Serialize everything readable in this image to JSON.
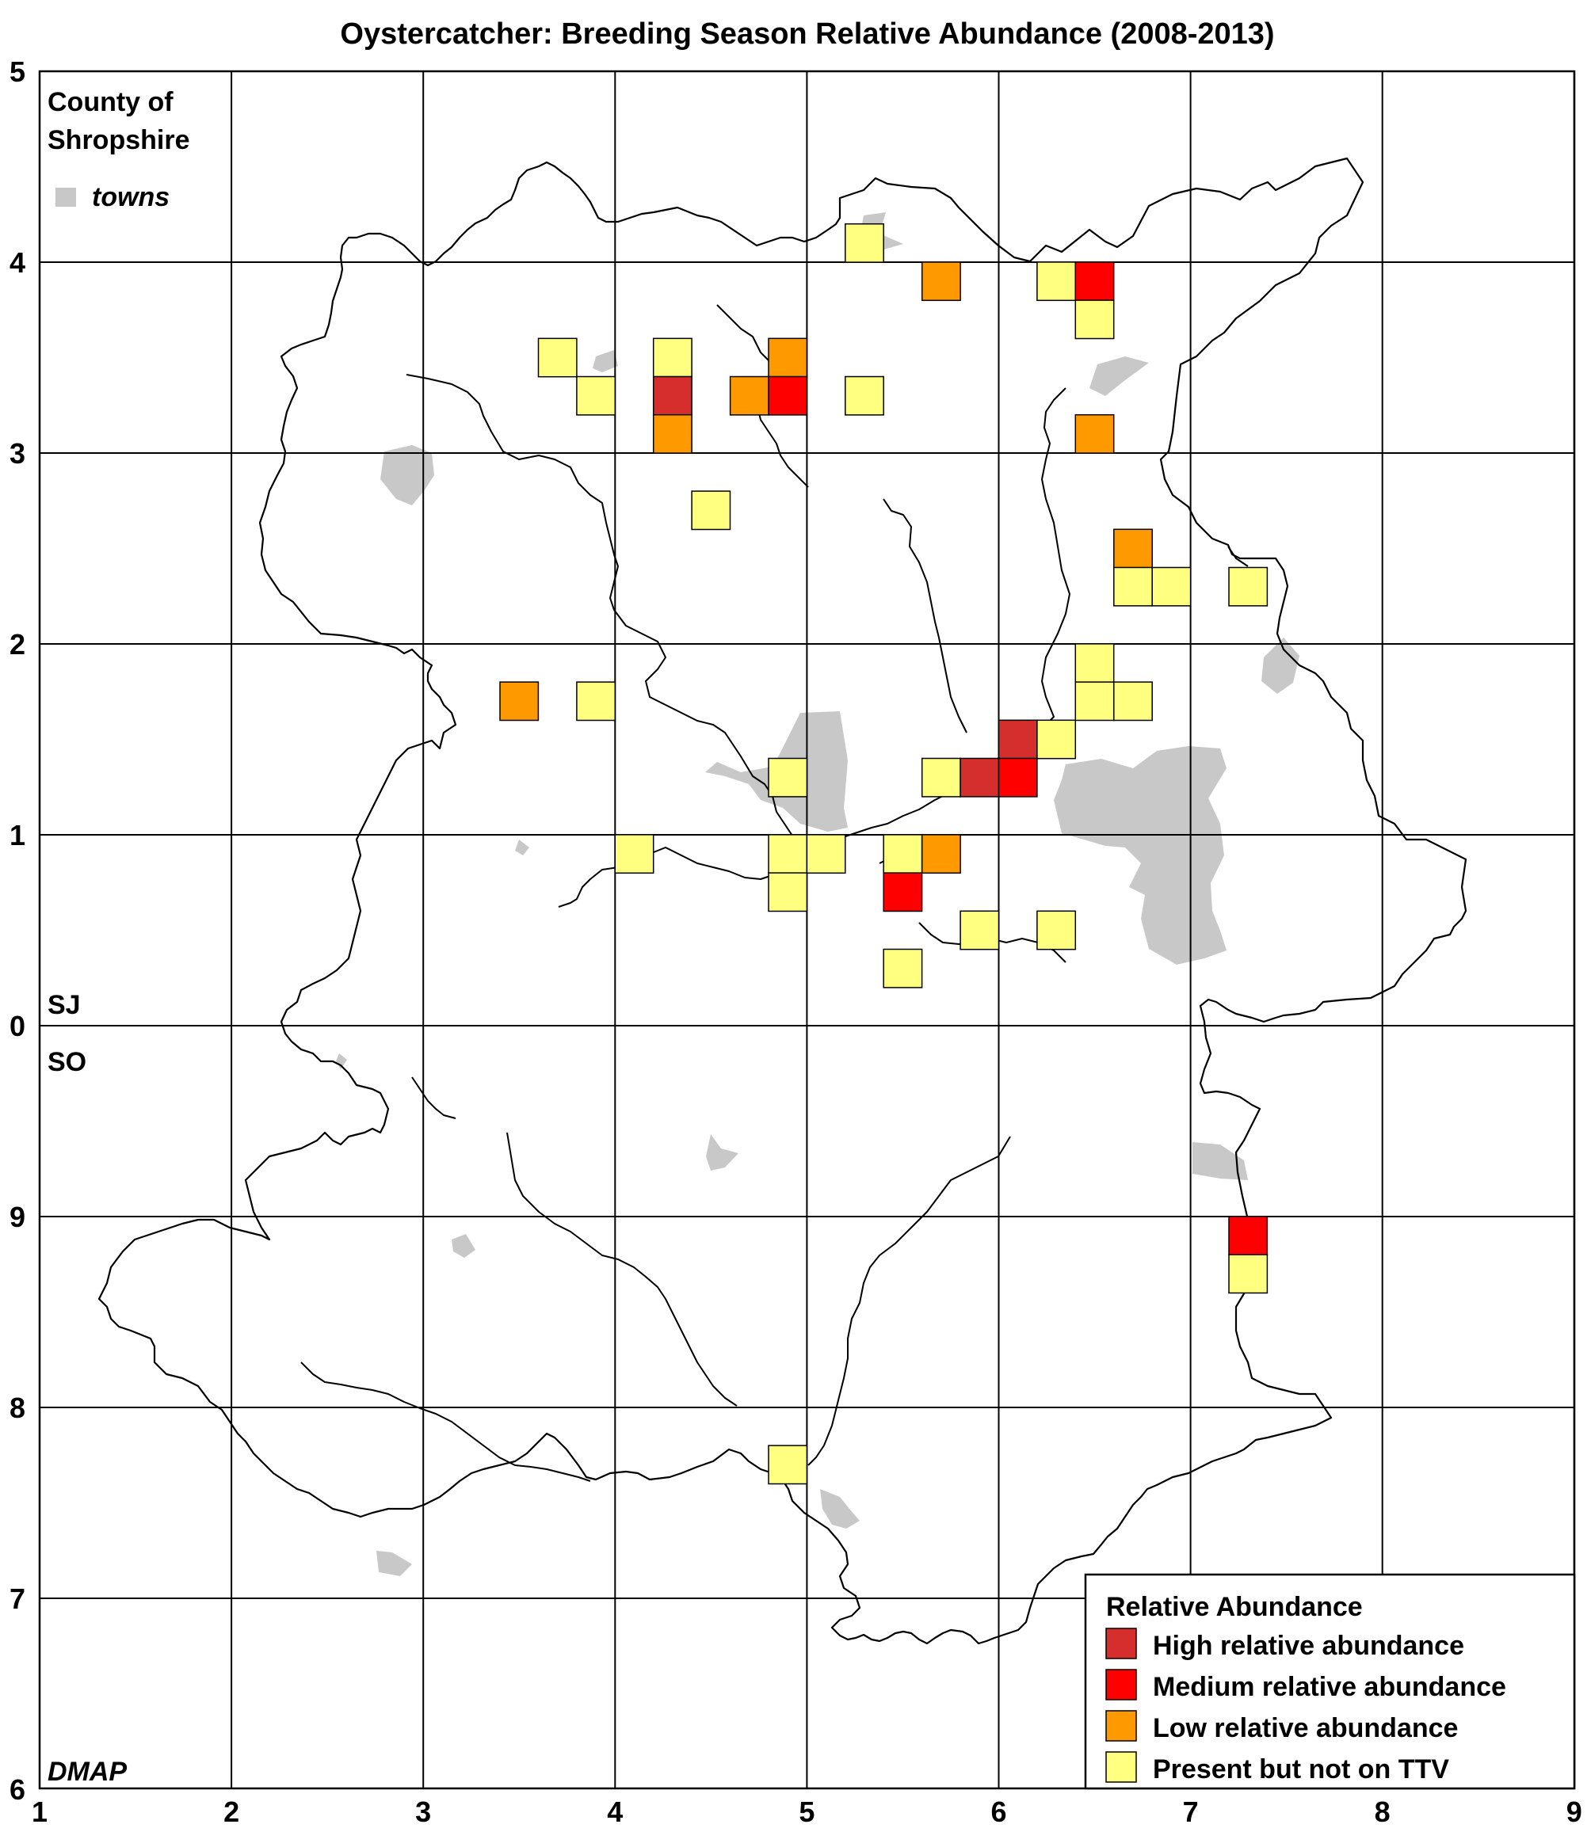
{
  "title": "Oystercatcher: Breeding Season Relative Abundance (2008-2013)",
  "county_label_line1": "County of",
  "county_label_line2": "Shropshire",
  "towns_label": "towns",
  "grid_square_top": "SJ",
  "grid_square_bottom": "SO",
  "credit": "DMAP",
  "x_ticks": [
    "1",
    "2",
    "3",
    "4",
    "5",
    "6",
    "7",
    "8",
    "9"
  ],
  "y_ticks": [
    "5",
    "4",
    "3",
    "2",
    "1",
    "0",
    "9",
    "8",
    "7",
    "6"
  ],
  "legend": {
    "title": "Relative Abundance",
    "items": [
      {
        "label": "High relative abundance",
        "color": "#d62d2d"
      },
      {
        "label": "Medium relative abundance",
        "color": "#ff0000"
      },
      {
        "label": "Low relative abundance",
        "color": "#ff9900"
      },
      {
        "label": "Present but not on TTV",
        "color": "#ffff80"
      }
    ]
  },
  "colors": {
    "town": "#c8c8c8",
    "high": "#d62d2d",
    "medium": "#ff0000",
    "low": "#ff9900",
    "present": "#ffff80"
  },
  "records": [
    {
      "e": 5.3,
      "n": 4.1,
      "level": "present"
    },
    {
      "e": 5.7,
      "n": 3.9,
      "level": "low"
    },
    {
      "e": 6.3,
      "n": 3.9,
      "level": "present"
    },
    {
      "e": 6.5,
      "n": 3.9,
      "level": "medium"
    },
    {
      "e": 6.5,
      "n": 3.7,
      "level": "present"
    },
    {
      "e": 3.7,
      "n": 3.5,
      "level": "present"
    },
    {
      "e": 4.3,
      "n": 3.5,
      "level": "present"
    },
    {
      "e": 4.9,
      "n": 3.5,
      "level": "low"
    },
    {
      "e": 3.9,
      "n": 3.3,
      "level": "present"
    },
    {
      "e": 4.3,
      "n": 3.3,
      "level": "high"
    },
    {
      "e": 4.7,
      "n": 3.3,
      "level": "low"
    },
    {
      "e": 4.9,
      "n": 3.3,
      "level": "medium"
    },
    {
      "e": 5.3,
      "n": 3.3,
      "level": "present"
    },
    {
      "e": 4.3,
      "n": 3.1,
      "level": "low"
    },
    {
      "e": 6.5,
      "n": 3.1,
      "level": "low"
    },
    {
      "e": 4.5,
      "n": 2.7,
      "level": "present"
    },
    {
      "e": 6.7,
      "n": 2.5,
      "level": "low"
    },
    {
      "e": 6.7,
      "n": 2.3,
      "level": "present"
    },
    {
      "e": 6.9,
      "n": 2.3,
      "level": "present"
    },
    {
      "e": 7.3,
      "n": 2.3,
      "level": "present"
    },
    {
      "e": 6.5,
      "n": 1.9,
      "level": "present"
    },
    {
      "e": 3.5,
      "n": 1.7,
      "level": "low"
    },
    {
      "e": 3.9,
      "n": 1.7,
      "level": "present"
    },
    {
      "e": 6.5,
      "n": 1.7,
      "level": "present"
    },
    {
      "e": 6.7,
      "n": 1.7,
      "level": "present"
    },
    {
      "e": 6.1,
      "n": 1.5,
      "level": "high"
    },
    {
      "e": 6.3,
      "n": 1.5,
      "level": "present"
    },
    {
      "e": 4.9,
      "n": 1.3,
      "level": "present"
    },
    {
      "e": 5.7,
      "n": 1.3,
      "level": "present"
    },
    {
      "e": 5.9,
      "n": 1.3,
      "level": "high"
    },
    {
      "e": 6.1,
      "n": 1.3,
      "level": "medium"
    },
    {
      "e": 4.1,
      "n": 0.9,
      "level": "present"
    },
    {
      "e": 4.9,
      "n": 0.9,
      "level": "present"
    },
    {
      "e": 5.1,
      "n": 0.9,
      "level": "present"
    },
    {
      "e": 5.5,
      "n": 0.9,
      "level": "present"
    },
    {
      "e": 5.7,
      "n": 0.9,
      "level": "low"
    },
    {
      "e": 4.9,
      "n": 0.7,
      "level": "present"
    },
    {
      "e": 5.5,
      "n": 0.7,
      "level": "medium"
    },
    {
      "e": 5.9,
      "n": 0.5,
      "level": "present"
    },
    {
      "e": 6.3,
      "n": 0.5,
      "level": "present"
    },
    {
      "e": 5.5,
      "n": 0.3,
      "level": "present"
    },
    {
      "e": 7.3,
      "n": -1.1,
      "level": "medium"
    },
    {
      "e": 7.3,
      "n": -1.3,
      "level": "present"
    },
    {
      "e": 4.9,
      "n": -2.3,
      "level": "present"
    }
  ]
}
